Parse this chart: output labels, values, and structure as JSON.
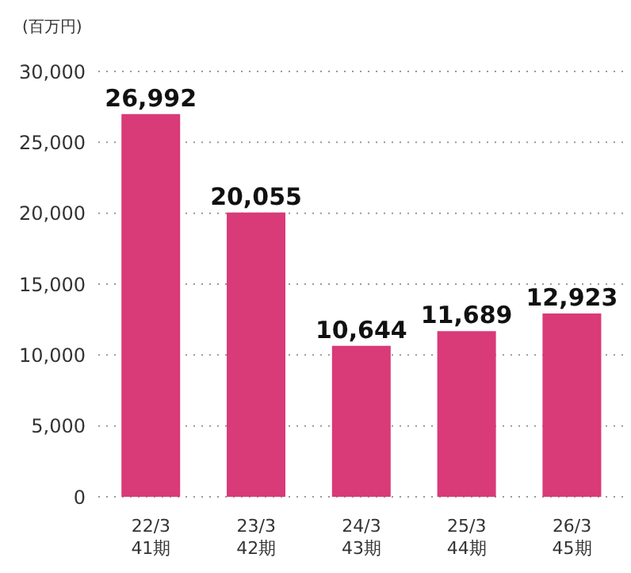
{
  "chart_data": {
    "type": "bar",
    "ylabel": "(百万円)",
    "categories": [
      "22/3\n41期",
      "23/3\n42期",
      "24/3\n43期",
      "25/3\n44期",
      "26/3\n45期"
    ],
    "values": [
      26992,
      20055,
      10644,
      11689,
      12923
    ],
    "color": "#d93a78",
    "value_labels": [
      "26,992",
      "20,055",
      "10,644",
      "11,689",
      "12,923"
    ],
    "ylim": [
      0,
      30000
    ],
    "yticks": [
      0,
      {
        "value": 5000,
        "label": "5,000"
      },
      {
        "value": 10000,
        "label": "10,000"
      },
      {
        "value": 15000,
        "label": "15,000"
      },
      {
        "value": 20000,
        "label": "20,000"
      },
      {
        "value": 25000,
        "label": "25,000"
      },
      {
        "value": 30000,
        "label": "30,000"
      }
    ],
    "grid": "y"
  }
}
